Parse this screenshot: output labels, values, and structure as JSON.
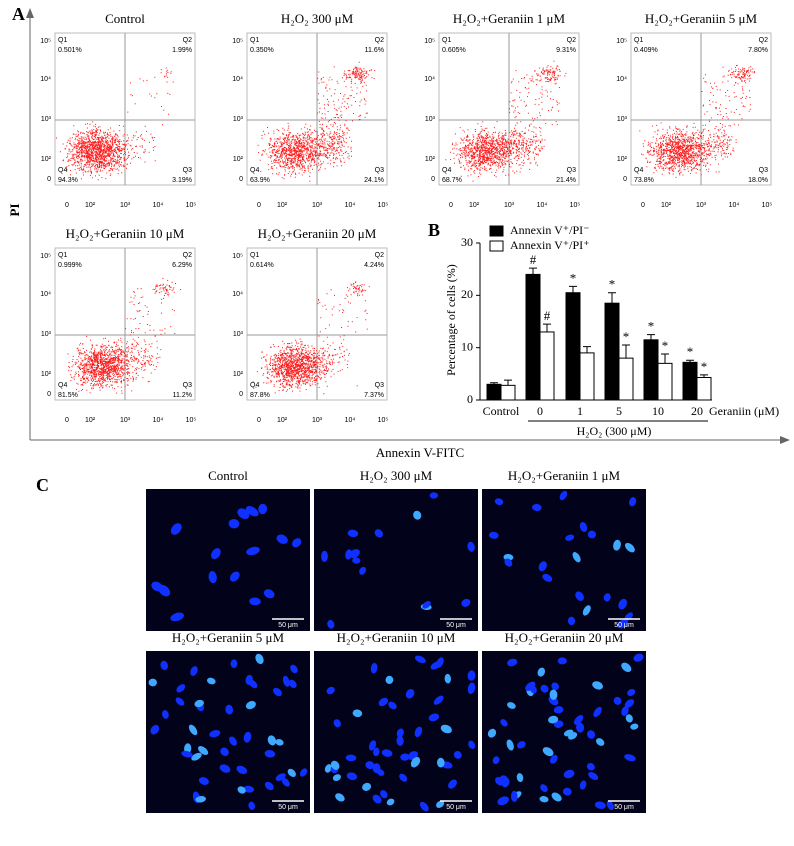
{
  "panel_a": {
    "label": "A",
    "y_label": "PI",
    "x_label": "Annexin V-FITC",
    "y_ticks": [
      "10⁵",
      "10⁴",
      "10³",
      "10²",
      "0"
    ],
    "x_ticks": [
      "0",
      "10²",
      "10³",
      "10⁴",
      "10⁵"
    ],
    "plots": [
      {
        "title": "Control",
        "quadrants": [
          {
            "name": "Q1",
            "value": "0.501%"
          },
          {
            "name": "Q2",
            "value": "1.99%"
          },
          {
            "name": "Q4",
            "value": "94.3%"
          },
          {
            "name": "Q3",
            "value": "3.19%"
          }
        ]
      },
      {
        "title": "H₂O₂ 300 μM",
        "quadrants": [
          {
            "name": "Q1",
            "value": "0.350%"
          },
          {
            "name": "Q2",
            "value": "11.6%"
          },
          {
            "name": "Q4",
            "value": "63.9%"
          },
          {
            "name": "Q3",
            "value": "24.1%"
          }
        ]
      },
      {
        "title": "H₂O₂+Geraniin 1 μM",
        "quadrants": [
          {
            "name": "Q1",
            "value": "0.605%"
          },
          {
            "name": "Q2",
            "value": "9.31%"
          },
          {
            "name": "Q4",
            "value": "68.7%"
          },
          {
            "name": "Q3",
            "value": "21.4%"
          }
        ]
      },
      {
        "title": "H₂O₂+Geraniin 5 μM",
        "quadrants": [
          {
            "name": "Q1",
            "value": "0.409%"
          },
          {
            "name": "Q2",
            "value": "7.80%"
          },
          {
            "name": "Q4",
            "value": "73.8%"
          },
          {
            "name": "Q3",
            "value": "18.0%"
          }
        ]
      },
      {
        "title": "H₂O₂+Geraniin 10 μM",
        "quadrants": [
          {
            "name": "Q1",
            "value": "0.999%"
          },
          {
            "name": "Q2",
            "value": "6.29%"
          },
          {
            "name": "Q4",
            "value": "81.5%"
          },
          {
            "name": "Q3",
            "value": "11.2%"
          }
        ]
      },
      {
        "title": "H₂O₂+Geraniin 20 μM",
        "quadrants": [
          {
            "name": "Q1",
            "value": "0.614%"
          },
          {
            "name": "Q2",
            "value": "4.24%"
          },
          {
            "name": "Q4",
            "value": "87.8%"
          },
          {
            "name": "Q3",
            "value": "7.37%"
          }
        ]
      }
    ]
  },
  "chart_data": {
    "type": "bar",
    "label": "B",
    "y_label": "Percentage of cells (%)",
    "x_label": "Geraniin (μM)",
    "group_label": "H₂O₂ (300 μM)",
    "categories": [
      "Control",
      "0",
      "1",
      "5",
      "10",
      "20"
    ],
    "series": [
      {
        "name": "Annexin V⁺/PI⁻",
        "color": "#000000",
        "values": [
          3,
          24,
          20.5,
          18.5,
          11.5,
          7.2
        ],
        "errors": [
          0.3,
          1.2,
          1.2,
          2,
          1,
          0.4
        ],
        "significance": [
          null,
          "#",
          "*",
          "*",
          "*",
          "*"
        ]
      },
      {
        "name": "Annexin V⁺/PI⁺",
        "color": "#ffffff",
        "values": [
          2.8,
          13,
          9,
          8,
          7,
          4.3
        ],
        "errors": [
          1,
          1.5,
          1.2,
          2.5,
          1.8,
          0.5
        ],
        "significance": [
          null,
          "#",
          null,
          "*",
          "*",
          "*"
        ]
      }
    ],
    "ylim": [
      0,
      30
    ],
    "yticks": [
      0,
      10,
      20,
      30
    ]
  },
  "panel_c": {
    "label": "C",
    "images": [
      {
        "title": "Control",
        "scale_bar": "50 μm"
      },
      {
        "title": "H₂O₂ 300 μM",
        "scale_bar": "50 μm"
      },
      {
        "title": "H₂O₂+Geraniin 1 μM",
        "scale_bar": "50 μm"
      },
      {
        "title": "H₂O₂+Geraniin 5 μM",
        "scale_bar": "50 μm"
      },
      {
        "title": "H₂O₂+Geraniin 10 μM",
        "scale_bar": "50 μm"
      },
      {
        "title": "H₂O₂+Geraniin 20 μM",
        "scale_bar": "50 μm"
      }
    ]
  }
}
